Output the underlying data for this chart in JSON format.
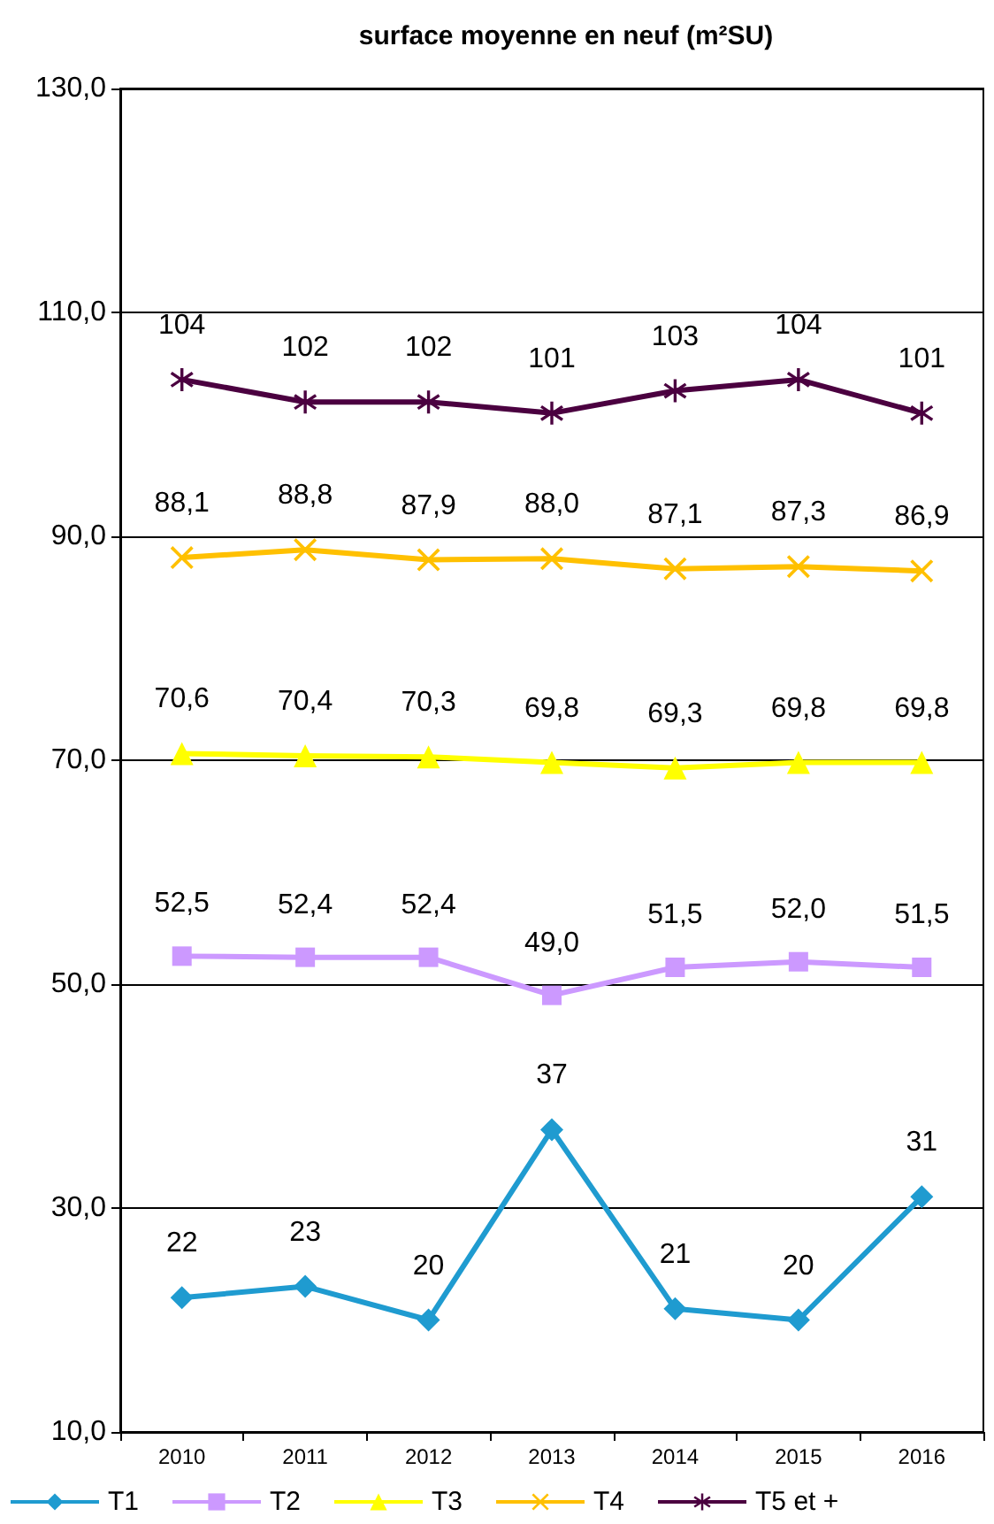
{
  "chart_data": {
    "type": "line",
    "title": "surface moyenne en neuf (m²SU)",
    "categories": [
      "2010",
      "2011",
      "2012",
      "2013",
      "2014",
      "2015",
      "2016"
    ],
    "series": [
      {
        "name": "T1",
        "color": "#1f9bd0",
        "marker": "diamond",
        "values": [
          22,
          23,
          20,
          37,
          21,
          20,
          31
        ],
        "value_labels": [
          "22",
          "23",
          "20",
          "37",
          "21",
          "20",
          "31"
        ]
      },
      {
        "name": "T2",
        "color": "#cc99ff",
        "marker": "square",
        "values": [
          52.5,
          52.4,
          52.4,
          49.0,
          51.5,
          52.0,
          51.5
        ],
        "value_labels": [
          "52,5",
          "52,4",
          "52,4",
          "49,0",
          "51,5",
          "52,0",
          "51,5"
        ]
      },
      {
        "name": "T3",
        "color": "#ffff00",
        "marker": "triangle",
        "values": [
          70.6,
          70.4,
          70.3,
          69.8,
          69.3,
          69.8,
          69.8
        ],
        "value_labels": [
          "70,6",
          "70,4",
          "70,3",
          "69,8",
          "69,3",
          "69,8",
          "69,8"
        ]
      },
      {
        "name": "T4",
        "color": "#ffc000",
        "marker": "cross",
        "values": [
          88.1,
          88.8,
          87.9,
          88.0,
          87.1,
          87.3,
          86.9
        ],
        "value_labels": [
          "88,1",
          "88,8",
          "87,9",
          "88,0",
          "87,1",
          "87,3",
          "86,9"
        ]
      },
      {
        "name": "T5 et +",
        "color": "#4b0040",
        "marker": "star",
        "values": [
          104,
          102,
          102,
          101,
          103,
          104,
          101
        ],
        "value_labels": [
          "104",
          "102",
          "102",
          "101",
          "103",
          "104",
          "101"
        ]
      }
    ],
    "ylim": [
      10,
      130
    ],
    "yticks": [
      {
        "value": 10,
        "label": "10,0"
      },
      {
        "value": 30,
        "label": "30,0"
      },
      {
        "value": 50,
        "label": "50,0"
      },
      {
        "value": 70,
        "label": "70,0"
      },
      {
        "value": 90,
        "label": "90,0"
      },
      {
        "value": 110,
        "label": "110,0"
      },
      {
        "value": 130,
        "label": "130,0"
      }
    ],
    "grid": "y",
    "legend": "bottom"
  }
}
